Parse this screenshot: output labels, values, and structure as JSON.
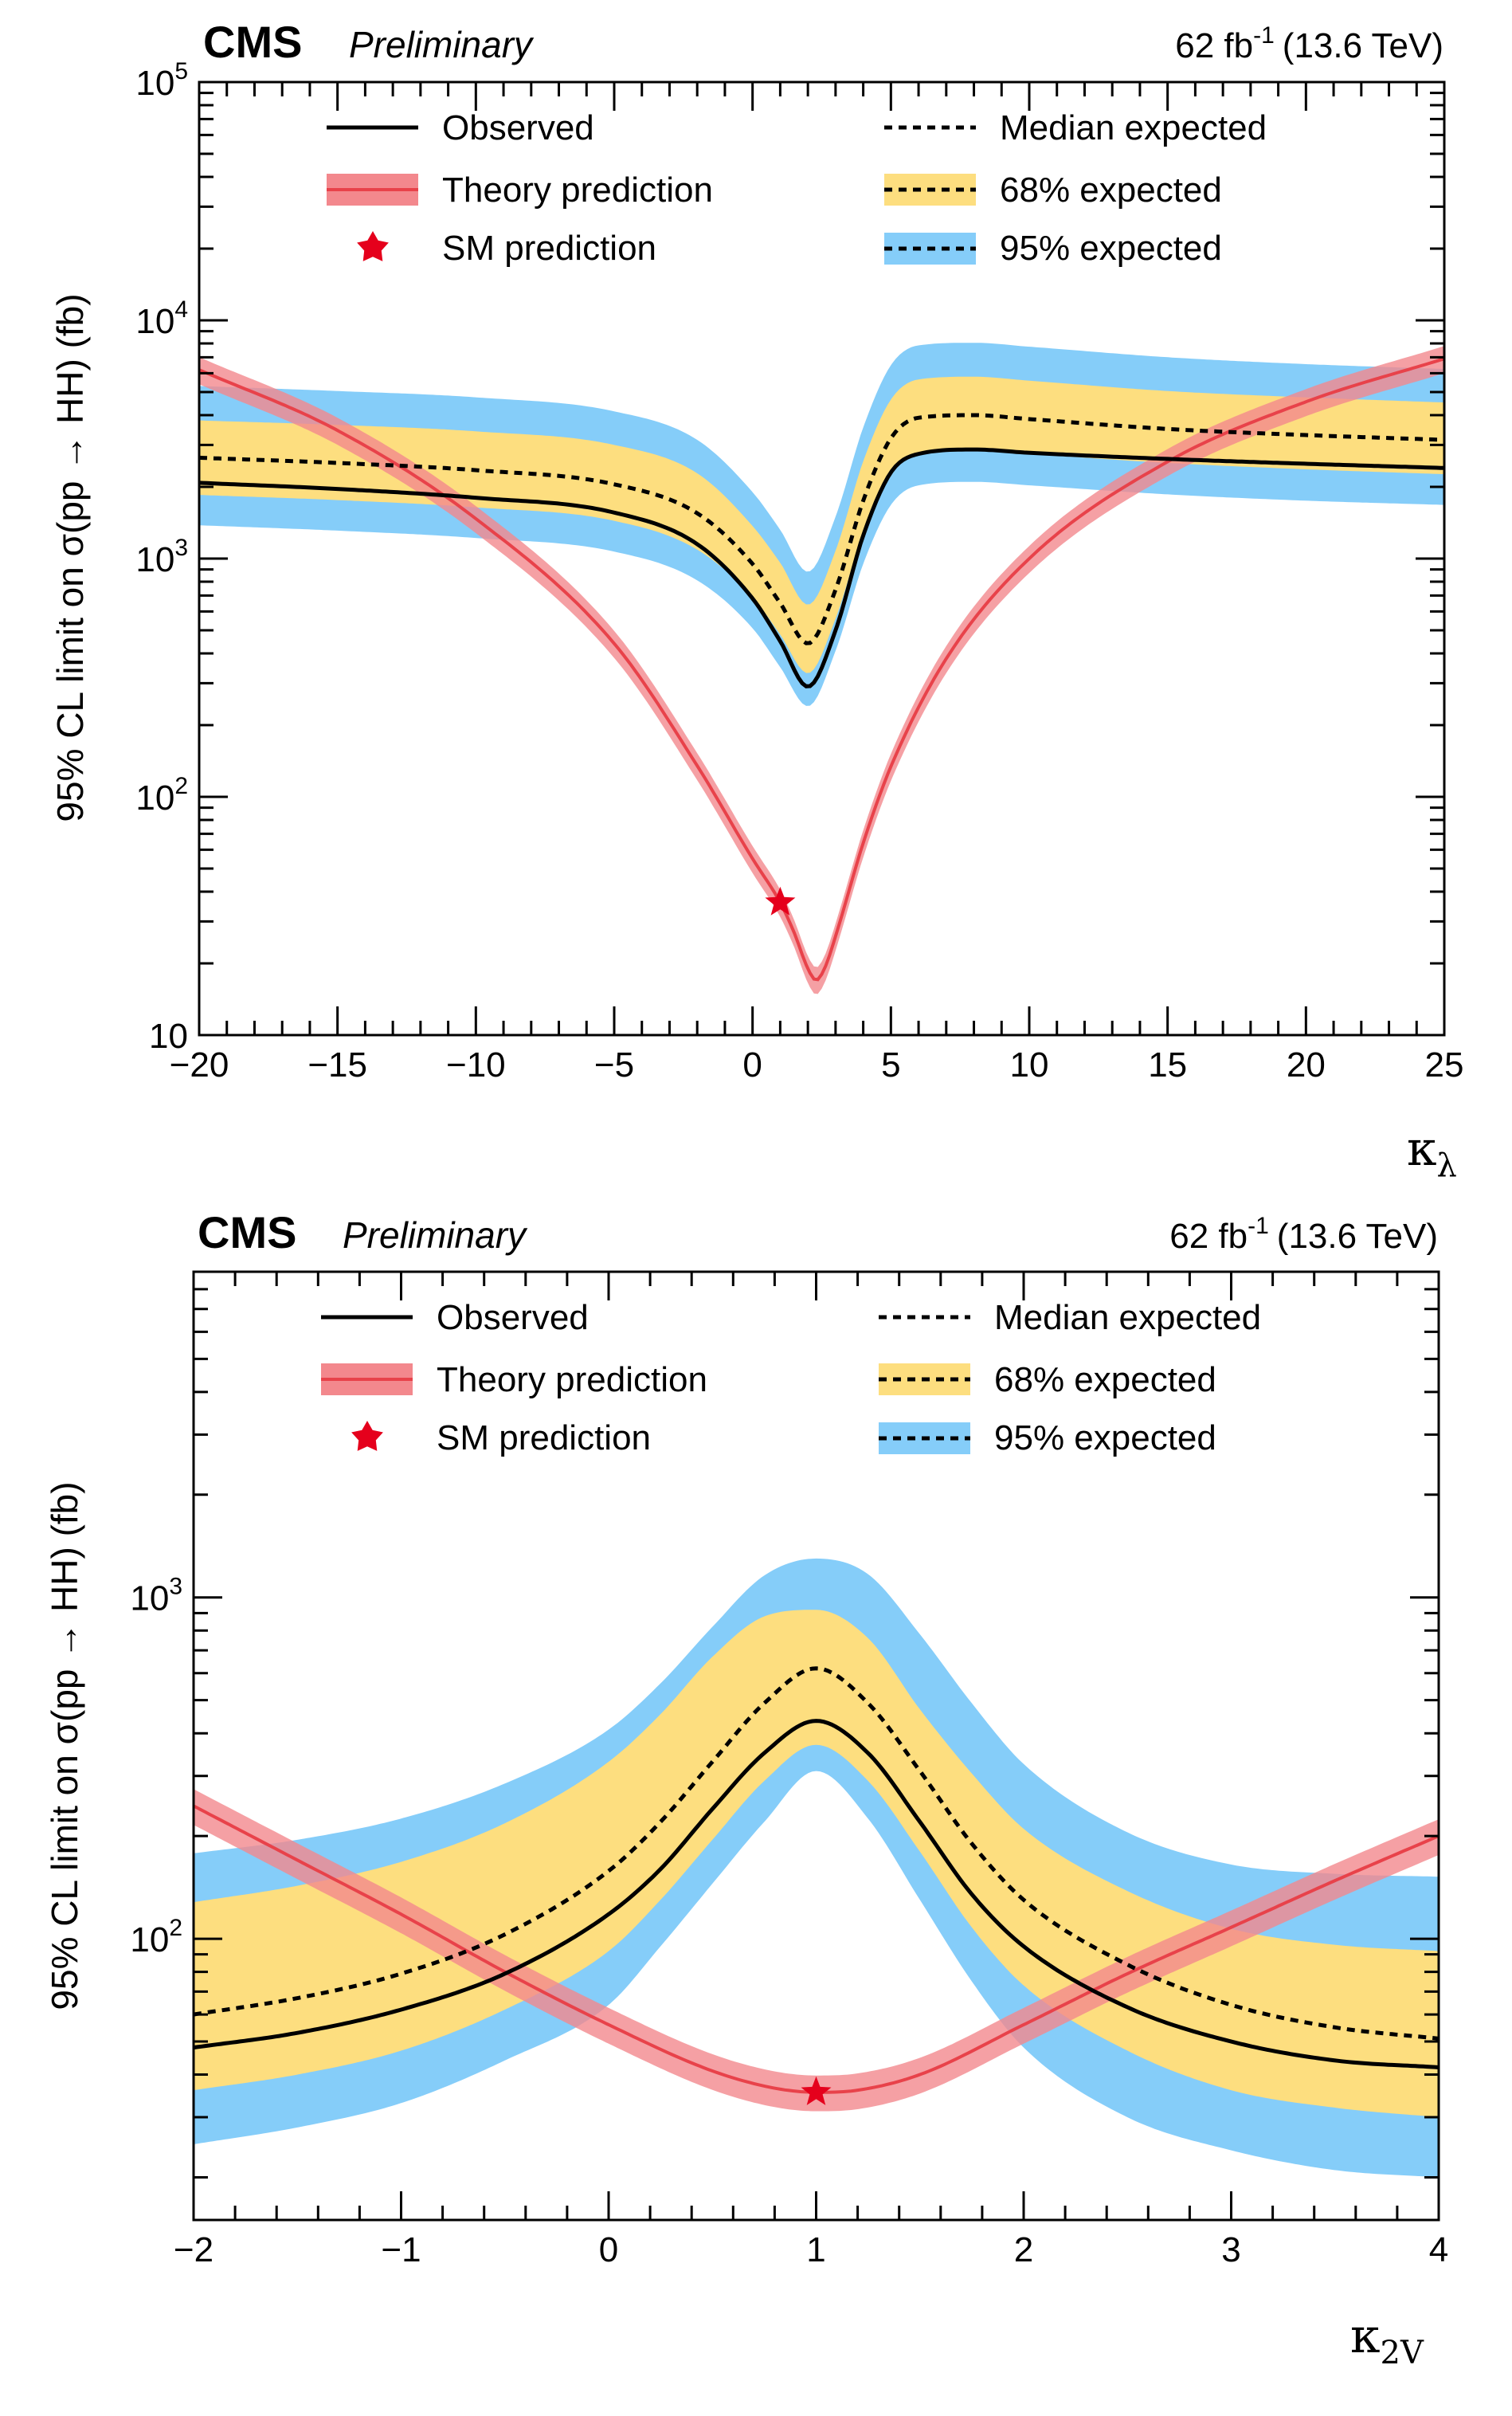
{
  "colors": {
    "band95": "#85cdf9",
    "band68": "#fdde7f",
    "theory_line": "#e8424a",
    "theory_band": "#f3888d",
    "star": "#e5001c",
    "ink": "#000000"
  },
  "legend": {
    "observed": "Observed",
    "theory": "Theory prediction",
    "sm": "SM prediction",
    "median": "Median expected",
    "exp68": "68% expected",
    "exp95": "95% expected"
  },
  "chart_data": [
    {
      "type": "line",
      "title": "CMS Preliminary",
      "experiment": "CMS",
      "status": "Preliminary",
      "lumi_label": "62 fb",
      "lumi_sup": "-1",
      "energy_label": "(13.6 TeV)",
      "ylabel": "95% CL limit on σ(pp → HH) (fb)",
      "xlabel_main": "κ",
      "xlabel_sub": "λ",
      "xlim": [
        -20,
        25
      ],
      "ylim": [
        10,
        100000
      ],
      "yscale": "log",
      "xticks": [
        -20,
        -15,
        -10,
        -5,
        0,
        5,
        10,
        15,
        20,
        25
      ],
      "xtick_labels": [
        "−20",
        "−15",
        "−10",
        "−5",
        "0",
        "5",
        "10",
        "15",
        "20",
        "25"
      ],
      "yticks": [
        {
          "value": 10,
          "base": "10",
          "exp": ""
        },
        {
          "value": 100,
          "base": "10",
          "exp": "2"
        },
        {
          "value": 1000,
          "base": "10",
          "exp": "3"
        },
        {
          "value": 10000,
          "base": "10",
          "exp": "4"
        },
        {
          "value": 100000,
          "base": "10",
          "exp": "5"
        }
      ],
      "x": [
        -20,
        -15,
        -10,
        -5,
        -2,
        0,
        1,
        2,
        3,
        4,
        5,
        6,
        8,
        10,
        15,
        20,
        25
      ],
      "observed": [
        2080,
        1960,
        1800,
        1560,
        1150,
        680,
        450,
        290,
        500,
        1250,
        2300,
        2750,
        2870,
        2780,
        2620,
        2500,
        2400
      ],
      "expected_median": [
        2650,
        2520,
        2350,
        2050,
        1550,
        950,
        650,
        440,
        740,
        1750,
        3200,
        3900,
        4000,
        3850,
        3500,
        3300,
        3150
      ],
      "band68_low": [
        1850,
        1760,
        1640,
        1440,
        1090,
        690,
        480,
        330,
        560,
        1290,
        2300,
        2760,
        2850,
        2750,
        2520,
        2370,
        2260
      ],
      "band68_high": [
        3800,
        3640,
        3420,
        3000,
        2280,
        1370,
        960,
        640,
        1080,
        2560,
        4650,
        5650,
        5800,
        5580,
        5050,
        4750,
        4520
      ],
      "band95_low": [
        1380,
        1310,
        1220,
        1070,
        810,
        510,
        350,
        240,
        410,
        950,
        1680,
        2030,
        2100,
        2030,
        1860,
        1750,
        1680
      ],
      "band95_high": [
        5300,
        5050,
        4750,
        4150,
        3150,
        1900,
        1320,
        880,
        1500,
        3550,
        6480,
        7850,
        8050,
        7750,
        7000,
        6550,
        6250
      ],
      "theory_x": [
        -20,
        -15,
        -10,
        -5,
        -2,
        0,
        1,
        1.5,
        2,
        2.3,
        2.6,
        3,
        4,
        5,
        7,
        10,
        15,
        20,
        25
      ],
      "theory": [
        6200,
        3450,
        1470,
        440,
        135,
        55,
        36,
        27,
        19,
        17,
        19,
        26,
        64,
        134,
        380,
        1000,
        2550,
        4550,
        6900
      ],
      "theory_band_frac": 0.13,
      "sm_point": {
        "x": 1,
        "y": 36
      }
    },
    {
      "type": "line",
      "title": "CMS Preliminary",
      "experiment": "CMS",
      "status": "Preliminary",
      "lumi_label": "62 fb",
      "lumi_sup": "-1",
      "energy_label": "(13.6 TeV)",
      "ylabel": "95% CL limit on σ(pp → HH) (fb)",
      "xlabel_main": "κ",
      "xlabel_sub": "2V",
      "xlim": [
        -2,
        4
      ],
      "ylim": [
        15,
        9000
      ],
      "yscale": "log",
      "xticks": [
        -2,
        -1,
        0,
        1,
        2,
        3,
        4
      ],
      "xtick_labels": [
        "−2",
        "−1",
        "0",
        "1",
        "2",
        "3",
        "4"
      ],
      "yticks": [
        {
          "value": 100,
          "base": "10",
          "exp": "2"
        },
        {
          "value": 1000,
          "base": "10",
          "exp": "3"
        }
      ],
      "x": [
        -2,
        -1.5,
        -1,
        -0.5,
        0,
        0.25,
        0.5,
        0.75,
        1,
        1.25,
        1.5,
        1.75,
        2,
        2.5,
        3,
        3.5,
        4
      ],
      "observed": [
        48,
        53,
        62,
        79,
        118,
        160,
        240,
        350,
        435,
        350,
        220,
        135,
        95,
        63,
        50,
        44,
        42
      ],
      "expected_median": [
        60,
        67,
        79,
        103,
        158,
        220,
        330,
        490,
        620,
        490,
        310,
        190,
        130,
        84,
        64,
        55,
        51
      ],
      "band68_low": [
        36,
        40,
        47,
        62,
        92,
        130,
        195,
        290,
        370,
        290,
        180,
        108,
        73,
        47,
        36,
        32,
        30
      ],
      "band68_high": [
        128,
        143,
        168,
        218,
        330,
        455,
        670,
        880,
        920,
        760,
        470,
        305,
        210,
        138,
        107,
        96,
        92
      ],
      "band95_low": [
        25,
        28,
        33,
        44,
        64,
        95,
        145,
        220,
        310,
        225,
        130,
        75,
        48,
        30,
        24,
        21,
        20
      ],
      "band95_high": [
        178,
        195,
        225,
        285,
        410,
        560,
        820,
        1160,
        1300,
        1170,
        780,
        490,
        325,
        205,
        165,
        155,
        152
      ],
      "theory_x": [
        -2,
        -1.5,
        -1,
        -0.5,
        0,
        0.5,
        0.8,
        1,
        1.2,
        1.5,
        2,
        2.5,
        3,
        3.5,
        4
      ],
      "theory": [
        245,
        170,
        118,
        80,
        56,
        41,
        36.5,
        35.5,
        36,
        40,
        56,
        79,
        108,
        148,
        200
      ],
      "theory_band_frac": 0.12,
      "sm_point": {
        "x": 1,
        "y": 35.5
      }
    }
  ]
}
